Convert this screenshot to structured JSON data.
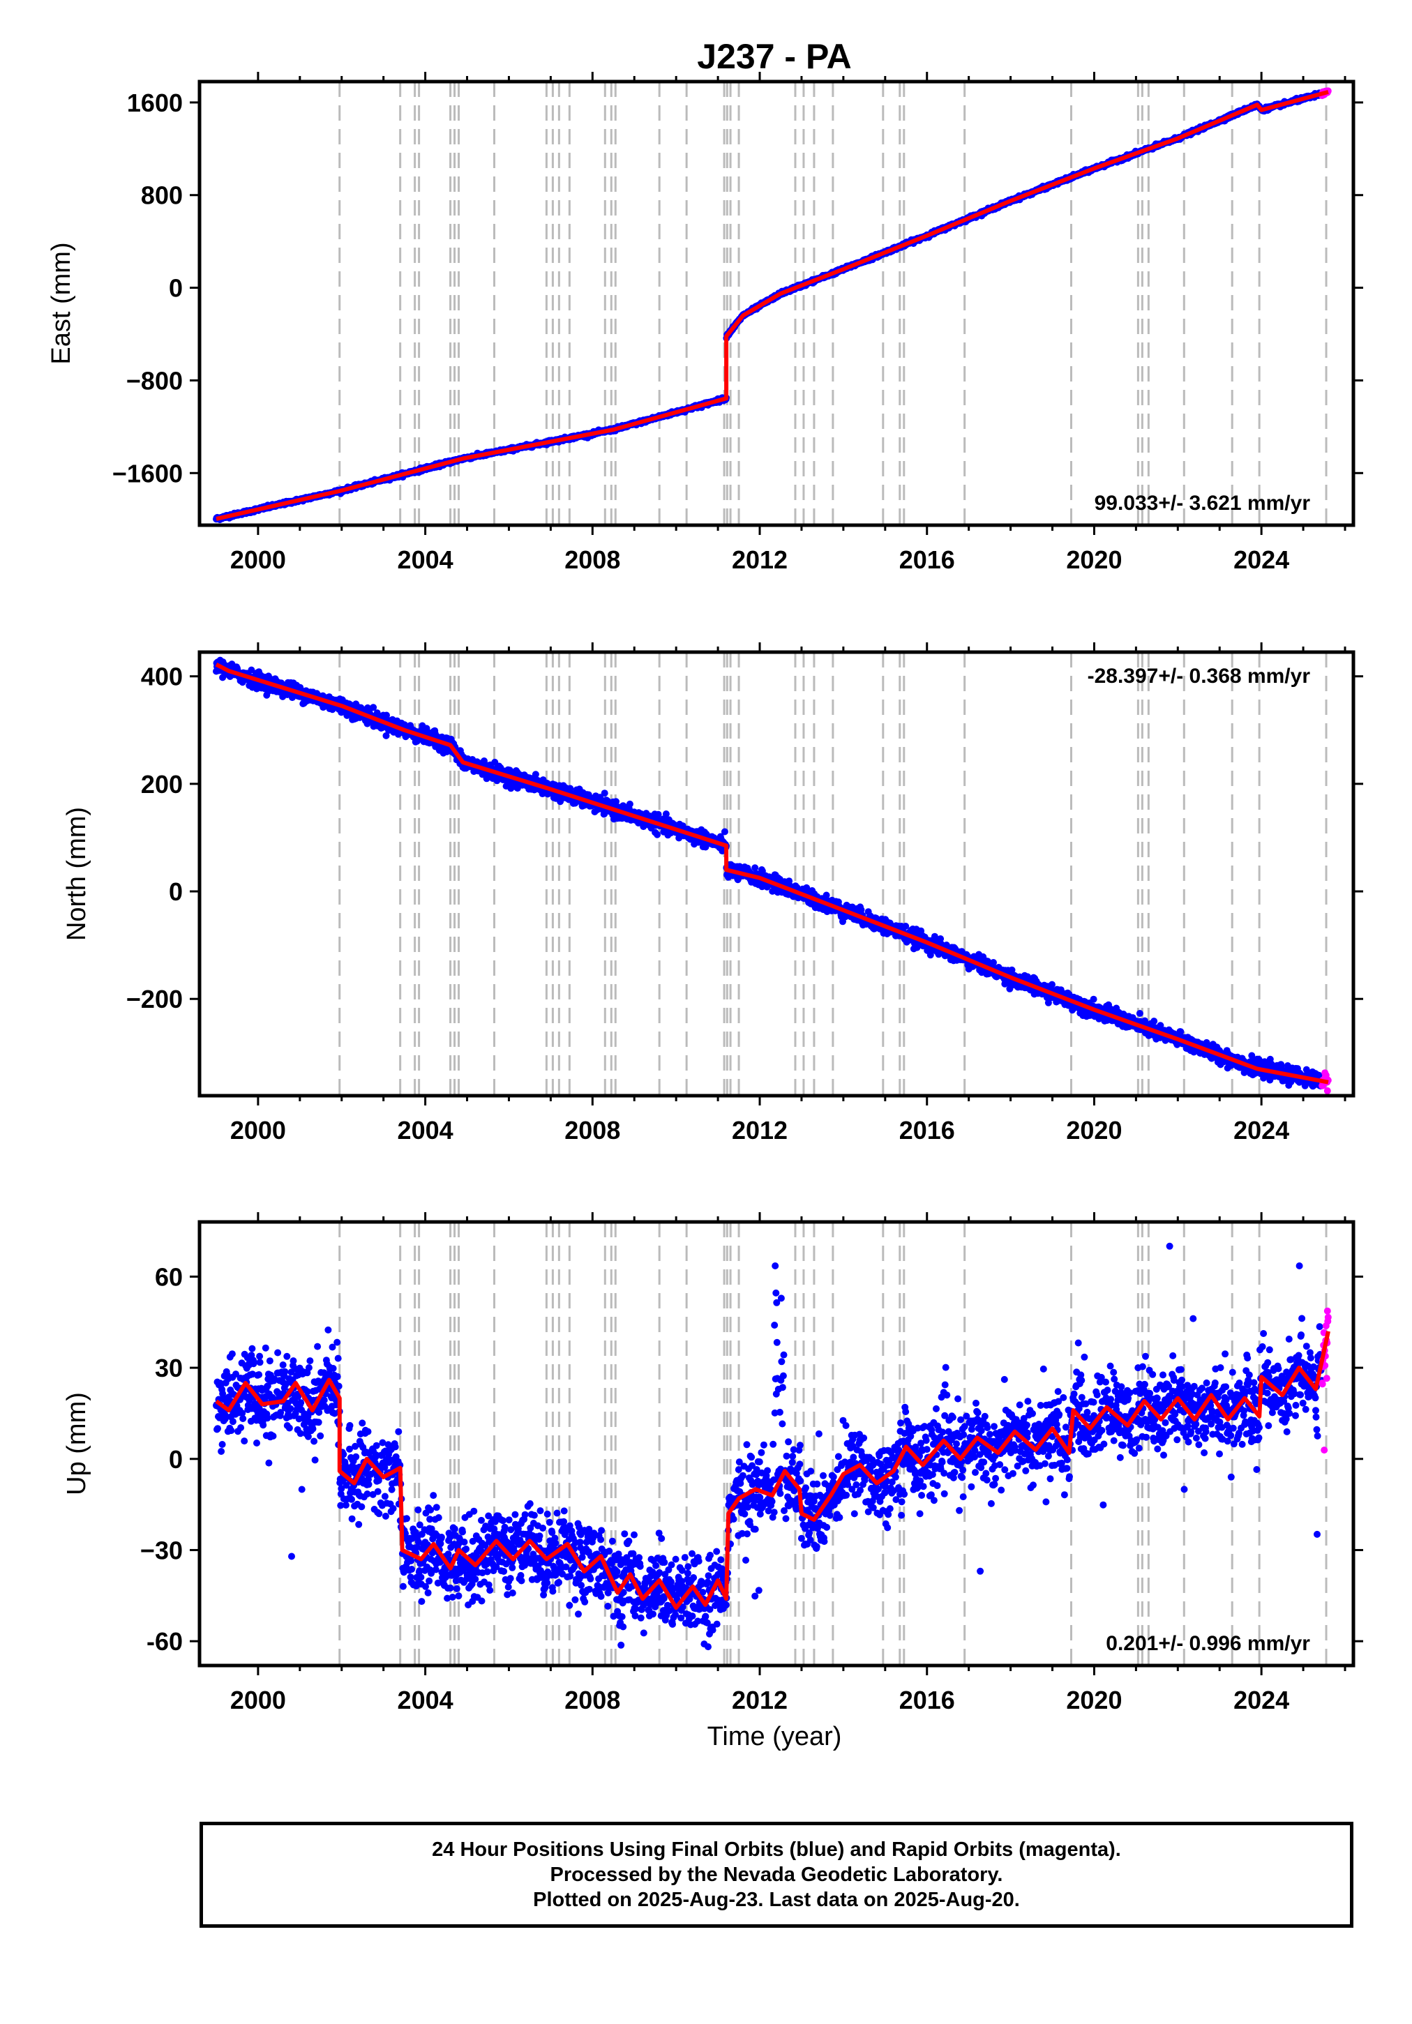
{
  "figure": {
    "title": "J237 - PA",
    "xlabel": "Time (year)",
    "footer": [
      "24 Hour Positions Using Final Orbits (blue) and Rapid Orbits (magenta).",
      "Processed by the Nevada Geodetic Laboratory.",
      "Plotted on 2025-Aug-23. Last data on 2025-Aug-20."
    ]
  },
  "colors": {
    "final": "#0000ff",
    "rapid": "#ff00ff",
    "model": "#ff0000",
    "event_lines": "#bbbbbb"
  },
  "chart_data": [
    {
      "type": "scatter",
      "panel": "east",
      "ylabel": "East (mm)",
      "rate_label": "99.033+/- 3.621 mm/yr",
      "xlim": [
        1998.6,
        2026.2
      ],
      "ylim": [
        -2050,
        1780
      ],
      "xticks": [
        2000,
        2004,
        2008,
        2012,
        2016,
        2020,
        2024
      ],
      "yticks": [
        -1600,
        -800,
        0,
        800,
        1600
      ],
      "ytick_labels": [
        "−1600",
        "−800",
        "0",
        "800",
        "1600"
      ],
      "grid": false,
      "trend": [
        {
          "x": 1999.0,
          "y": -1995
        },
        {
          "x": 2001.95,
          "y": -1755
        },
        {
          "x": 2004.9,
          "y": -1475
        },
        {
          "x": 2008.5,
          "y": -1225
        },
        {
          "x": 2011.2,
          "y": -955
        },
        {
          "x": 2011.2,
          "y": -420
        },
        {
          "x": 2011.6,
          "y": -240
        },
        {
          "x": 2012.5,
          "y": -50
        },
        {
          "x": 2014.0,
          "y": 160
        },
        {
          "x": 2016.0,
          "y": 450
        },
        {
          "x": 2018.0,
          "y": 750
        },
        {
          "x": 2020.0,
          "y": 1030
        },
        {
          "x": 2022.0,
          "y": 1290
        },
        {
          "x": 2023.9,
          "y": 1580
        },
        {
          "x": 2024.0,
          "y": 1535
        },
        {
          "x": 2025.6,
          "y": 1690
        }
      ]
    },
    {
      "type": "scatter",
      "panel": "north",
      "ylabel": "North (mm)",
      "rate_label": "-28.397+/- 0.368 mm/yr",
      "xlim": [
        1998.6,
        2026.2
      ],
      "ylim": [
        -380,
        445
      ],
      "xticks": [
        2000,
        2004,
        2008,
        2012,
        2016,
        2020,
        2024
      ],
      "yticks": [
        -200,
        0,
        200,
        400
      ],
      "ytick_labels": [
        "−200",
        "0",
        "200",
        "400"
      ],
      "grid": false,
      "trend": [
        {
          "x": 1999.0,
          "y": 422
        },
        {
          "x": 1999.3,
          "y": 410
        },
        {
          "x": 2002.0,
          "y": 345
        },
        {
          "x": 2003.5,
          "y": 300
        },
        {
          "x": 2004.6,
          "y": 272
        },
        {
          "x": 2004.9,
          "y": 240
        },
        {
          "x": 2007.0,
          "y": 190
        },
        {
          "x": 2009.0,
          "y": 140
        },
        {
          "x": 2011.2,
          "y": 85
        },
        {
          "x": 2011.2,
          "y": 40
        },
        {
          "x": 2012.0,
          "y": 25
        },
        {
          "x": 2014.0,
          "y": -35
        },
        {
          "x": 2016.0,
          "y": -95
        },
        {
          "x": 2018.0,
          "y": -160
        },
        {
          "x": 2020.0,
          "y": -220
        },
        {
          "x": 2022.0,
          "y": -275
        },
        {
          "x": 2023.9,
          "y": -330
        },
        {
          "x": 2025.6,
          "y": -355
        }
      ]
    },
    {
      "type": "scatter",
      "panel": "up",
      "ylabel": "Up (mm)",
      "rate_label": "0.201+/- 0.996 mm/yr",
      "xlim": [
        1998.6,
        2026.2
      ],
      "ylim": [
        -68,
        78
      ],
      "xticks": [
        2000,
        2004,
        2008,
        2012,
        2016,
        2020,
        2024
      ],
      "yticks": [
        -60,
        -30,
        0,
        30,
        60
      ],
      "ytick_labels": [
        "-60",
        "−30",
        "0",
        "30",
        "60"
      ],
      "grid": false,
      "trend": [
        {
          "x": 1999.0,
          "y": 19
        },
        {
          "x": 1999.3,
          "y": 16
        },
        {
          "x": 1999.7,
          "y": 25
        },
        {
          "x": 2000.1,
          "y": 18
        },
        {
          "x": 2000.6,
          "y": 19
        },
        {
          "x": 2000.9,
          "y": 25
        },
        {
          "x": 2001.3,
          "y": 16
        },
        {
          "x": 2001.7,
          "y": 26
        },
        {
          "x": 2001.95,
          "y": 20
        },
        {
          "x": 2001.95,
          "y": -4
        },
        {
          "x": 2002.3,
          "y": -8
        },
        {
          "x": 2002.6,
          "y": 0
        },
        {
          "x": 2003.0,
          "y": -6
        },
        {
          "x": 2003.4,
          "y": -3
        },
        {
          "x": 2003.45,
          "y": -30
        },
        {
          "x": 2003.9,
          "y": -33
        },
        {
          "x": 2004.2,
          "y": -28
        },
        {
          "x": 2004.6,
          "y": -36
        },
        {
          "x": 2004.8,
          "y": -30
        },
        {
          "x": 2005.2,
          "y": -35
        },
        {
          "x": 2005.7,
          "y": -27
        },
        {
          "x": 2006.1,
          "y": -33
        },
        {
          "x": 2006.5,
          "y": -27
        },
        {
          "x": 2006.9,
          "y": -33
        },
        {
          "x": 2007.4,
          "y": -28
        },
        {
          "x": 2007.8,
          "y": -37
        },
        {
          "x": 2008.2,
          "y": -32
        },
        {
          "x": 2008.6,
          "y": -44
        },
        {
          "x": 2008.9,
          "y": -38
        },
        {
          "x": 2009.2,
          "y": -46
        },
        {
          "x": 2009.6,
          "y": -40
        },
        {
          "x": 2010.0,
          "y": -49
        },
        {
          "x": 2010.4,
          "y": -42
        },
        {
          "x": 2010.7,
          "y": -48
        },
        {
          "x": 2011.0,
          "y": -40
        },
        {
          "x": 2011.2,
          "y": -46
        },
        {
          "x": 2011.25,
          "y": -18
        },
        {
          "x": 2011.5,
          "y": -13
        },
        {
          "x": 2011.9,
          "y": -10
        },
        {
          "x": 2012.3,
          "y": -12
        },
        {
          "x": 2012.6,
          "y": -4
        },
        {
          "x": 2012.95,
          "y": -10
        },
        {
          "x": 2013.0,
          "y": -18
        },
        {
          "x": 2013.3,
          "y": -20
        },
        {
          "x": 2013.7,
          "y": -12
        },
        {
          "x": 2014.0,
          "y": -5
        },
        {
          "x": 2014.4,
          "y": -2
        },
        {
          "x": 2014.8,
          "y": -8
        },
        {
          "x": 2015.2,
          "y": -4
        },
        {
          "x": 2015.5,
          "y": 4
        },
        {
          "x": 2015.9,
          "y": -2
        },
        {
          "x": 2016.4,
          "y": 6
        },
        {
          "x": 2016.8,
          "y": 0
        },
        {
          "x": 2017.2,
          "y": 7
        },
        {
          "x": 2017.7,
          "y": 2
        },
        {
          "x": 2018.1,
          "y": 9
        },
        {
          "x": 2018.6,
          "y": 3
        },
        {
          "x": 2019.0,
          "y": 10
        },
        {
          "x": 2019.4,
          "y": 2
        },
        {
          "x": 2019.5,
          "y": 16
        },
        {
          "x": 2019.9,
          "y": 10
        },
        {
          "x": 2020.3,
          "y": 17
        },
        {
          "x": 2020.8,
          "y": 11
        },
        {
          "x": 2021.2,
          "y": 19
        },
        {
          "x": 2021.6,
          "y": 13
        },
        {
          "x": 2022.0,
          "y": 20
        },
        {
          "x": 2022.4,
          "y": 13
        },
        {
          "x": 2022.8,
          "y": 21
        },
        {
          "x": 2023.2,
          "y": 13
        },
        {
          "x": 2023.6,
          "y": 20
        },
        {
          "x": 2023.95,
          "y": 14
        },
        {
          "x": 2024.0,
          "y": 27
        },
        {
          "x": 2024.5,
          "y": 21
        },
        {
          "x": 2024.9,
          "y": 30
        },
        {
          "x": 2025.3,
          "y": 23
        },
        {
          "x": 2025.6,
          "y": 42
        }
      ]
    }
  ],
  "event_years": [
    2001.95,
    2003.4,
    2003.75,
    2003.85,
    2004.6,
    2004.7,
    2004.8,
    2005.65,
    2006.9,
    2007.05,
    2007.2,
    2007.45,
    2008.3,
    2008.45,
    2008.55,
    2009.6,
    2010.25,
    2011.15,
    2011.22,
    2011.3,
    2011.5,
    2012.85,
    2013.05,
    2013.3,
    2013.75,
    2014.95,
    2015.35,
    2015.45,
    2016.9,
    2019.45,
    2021.05,
    2021.15,
    2021.3,
    2022.15,
    2023.3,
    2023.95,
    2025.55
  ]
}
